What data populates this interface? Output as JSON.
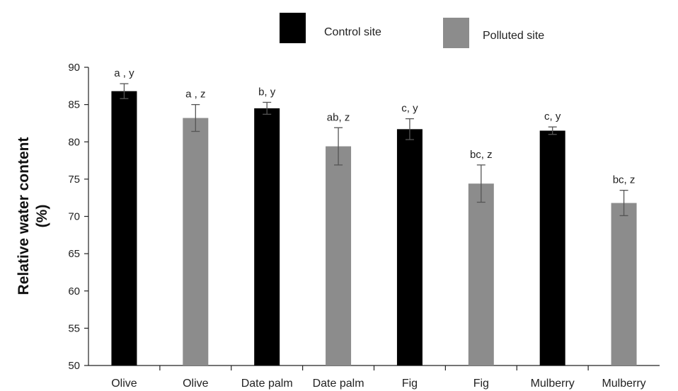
{
  "chart_data": {
    "type": "bar",
    "title": "",
    "xlabel": "",
    "ylabel_line1": "Relative water content",
    "ylabel_line2": "(%)",
    "ylim": [
      50,
      90
    ],
    "yticks": [
      50,
      55,
      60,
      65,
      70,
      75,
      80,
      85,
      90
    ],
    "grid": false,
    "legend_position": "top-center",
    "legend": [
      {
        "label": "Control site",
        "color": "#000000"
      },
      {
        "label": "Polluted site",
        "color": "#8c8c8c"
      }
    ],
    "categories": [
      "Olive",
      "Olive",
      "Date palm",
      "Date palm",
      "Fig",
      "Fig",
      "Mulberry",
      "Mulberry"
    ],
    "groups": [
      "Control site",
      "Polluted site",
      "Control site",
      "Polluted site",
      "Control site",
      "Polluted site",
      "Control site",
      "Polluted site"
    ],
    "values": [
      86.8,
      83.2,
      84.5,
      79.4,
      81.7,
      74.4,
      81.5,
      71.8
    ],
    "errors": [
      1.0,
      1.8,
      0.8,
      2.5,
      1.4,
      2.5,
      0.5,
      1.7
    ],
    "annotations": [
      "a , y",
      "a , z",
      "b, y",
      "ab, z",
      "c, y",
      "bc, z",
      "c, y",
      "bc, z"
    ]
  }
}
